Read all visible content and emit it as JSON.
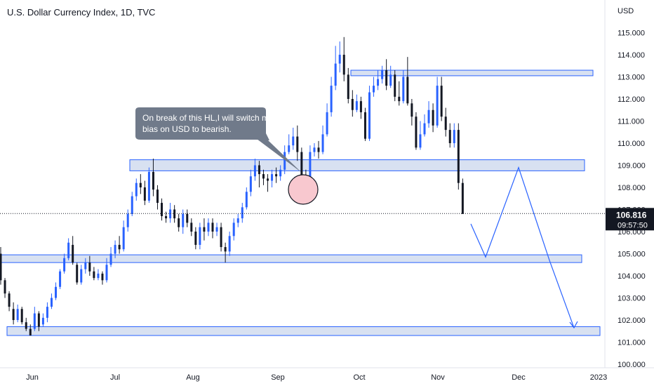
{
  "header": {
    "title": "U.S. Dollar Currency Index, 1D, TVC"
  },
  "axis": {
    "currency": "USD",
    "y_ticks": [
      "115.000",
      "114.000",
      "113.000",
      "112.000",
      "111.000",
      "110.000",
      "109.000",
      "108.000",
      "107.000",
      "106.000",
      "105.000",
      "104.000",
      "103.000",
      "102.000",
      "101.000",
      "100.000"
    ],
    "x_ticks": [
      "Jun",
      "Jul",
      "Aug",
      "Sep",
      "Oct",
      "Nov",
      "Dec",
      "2023"
    ]
  },
  "price_tag": {
    "price": "106.816",
    "countdown": "09:57:50"
  },
  "annotation": {
    "line1": "On break of this HL,I will switch my",
    "line2": "bias on USD to bearish."
  },
  "colors": {
    "bull": "#2962ff",
    "bear": "#131722",
    "zone_fill": "#d1dcee",
    "zone_border": "#2962ff",
    "arrow": "#2962ff",
    "circle_fill": "#f8c8cf",
    "callout": "#707a8a"
  },
  "chart_data": {
    "type": "candlestick",
    "title": "U.S. Dollar Currency Index, 1D, TVC",
    "ylabel": "USD",
    "ylim": [
      100,
      116
    ],
    "last_price": 106.816,
    "zones": [
      {
        "low": 101.3,
        "high": 101.7
      },
      {
        "low": 104.6,
        "high": 104.95
      },
      {
        "low": 108.75,
        "high": 109.25
      },
      {
        "low": 113.05,
        "high": 113.3
      }
    ],
    "projection_path": [
      106.35,
      104.85,
      108.9,
      104.7,
      101.65
    ],
    "candles": [
      [
        105.0,
        103.8,
        105.3,
        103.6
      ],
      [
        103.8,
        103.2,
        103.9,
        103.0
      ],
      [
        103.2,
        102.6,
        103.3,
        102.4
      ],
      [
        102.5,
        102.0,
        102.8,
        101.8
      ],
      [
        102.0,
        102.5,
        102.7,
        101.9
      ],
      [
        102.5,
        101.9,
        102.6,
        101.8
      ],
      [
        101.9,
        101.6,
        102.1,
        101.5
      ],
      [
        101.6,
        101.3,
        101.8,
        101.3
      ],
      [
        101.6,
        102.3,
        102.6,
        101.5
      ],
      [
        102.3,
        101.7,
        102.4,
        101.5
      ],
      [
        101.8,
        102.1,
        102.3,
        101.7
      ],
      [
        102.1,
        102.6,
        102.8,
        101.9
      ],
      [
        102.6,
        103.0,
        103.2,
        102.5
      ],
      [
        103.0,
        103.5,
        103.7,
        102.9
      ],
      [
        103.5,
        104.2,
        104.3,
        103.4
      ],
      [
        104.2,
        104.8,
        105.0,
        104.1
      ],
      [
        104.8,
        105.5,
        105.7,
        104.7
      ],
      [
        105.4,
        104.6,
        105.8,
        104.5
      ],
      [
        104.5,
        103.7,
        104.6,
        103.6
      ],
      [
        103.7,
        104.3,
        104.5,
        103.6
      ],
      [
        104.3,
        104.6,
        104.8,
        104.1
      ],
      [
        104.6,
        104.2,
        104.9,
        104.0
      ],
      [
        104.2,
        103.9,
        104.4,
        103.8
      ],
      [
        103.9,
        104.1,
        104.3,
        103.8
      ],
      [
        104.1,
        103.8,
        104.2,
        103.6
      ],
      [
        103.8,
        104.5,
        104.8,
        103.7
      ],
      [
        104.5,
        105.0,
        105.3,
        104.4
      ],
      [
        105.0,
        105.4,
        105.6,
        104.8
      ],
      [
        105.4,
        105.2,
        105.8,
        105.0
      ],
      [
        105.2,
        106.2,
        106.5,
        105.1
      ],
      [
        106.2,
        106.8,
        107.0,
        106.0
      ],
      [
        106.8,
        107.6,
        107.8,
        106.7
      ],
      [
        107.6,
        108.2,
        108.4,
        107.4
      ],
      [
        108.2,
        108.0,
        108.6,
        107.7
      ],
      [
        108.0,
        107.4,
        108.3,
        107.2
      ],
      [
        107.4,
        108.7,
        108.9,
        107.3
      ],
      [
        108.7,
        107.9,
        109.3,
        107.6
      ],
      [
        107.9,
        107.3,
        108.1,
        107.0
      ],
      [
        107.3,
        106.7,
        107.5,
        106.5
      ],
      [
        106.7,
        106.6,
        106.9,
        106.4
      ],
      [
        106.6,
        107.0,
        107.3,
        106.4
      ],
      [
        107.0,
        106.6,
        107.2,
        106.4
      ],
      [
        106.6,
        106.2,
        106.8,
        106.0
      ],
      [
        106.2,
        106.8,
        107.0,
        105.9
      ],
      [
        106.8,
        106.4,
        107.0,
        106.2
      ],
      [
        106.4,
        106.0,
        106.6,
        105.8
      ],
      [
        106.0,
        105.4,
        106.2,
        105.2
      ],
      [
        105.4,
        106.2,
        106.4,
        105.2
      ],
      [
        106.2,
        106.0,
        106.6,
        105.6
      ],
      [
        106.0,
        106.4,
        106.6,
        105.8
      ],
      [
        106.4,
        106.0,
        106.6,
        105.7
      ],
      [
        106.0,
        106.2,
        106.4,
        105.8
      ],
      [
        106.2,
        105.3,
        106.4,
        105.1
      ],
      [
        105.3,
        105.1,
        105.5,
        104.6
      ],
      [
        105.1,
        105.8,
        106.0,
        104.9
      ],
      [
        105.8,
        106.4,
        106.6,
        105.6
      ],
      [
        106.4,
        106.6,
        106.8,
        106.2
      ],
      [
        106.6,
        107.1,
        107.3,
        106.4
      ],
      [
        107.1,
        107.8,
        108.0,
        107.0
      ],
      [
        107.8,
        108.5,
        108.8,
        107.6
      ],
      [
        108.5,
        109.0,
        109.3,
        108.3
      ],
      [
        109.0,
        108.6,
        109.2,
        108.0
      ],
      [
        108.6,
        108.4,
        108.8,
        108.1
      ],
      [
        108.4,
        108.3,
        108.6,
        107.8
      ],
      [
        108.3,
        108.6,
        108.8,
        108.0
      ],
      [
        108.6,
        108.5,
        108.9,
        108.2
      ],
      [
        108.5,
        108.8,
        109.0,
        108.3
      ],
      [
        108.8,
        109.6,
        109.9,
        108.6
      ],
      [
        109.6,
        109.9,
        110.4,
        109.5
      ],
      [
        109.9,
        110.3,
        110.7,
        109.7
      ],
      [
        110.3,
        109.6,
        110.8,
        109.2
      ],
      [
        109.6,
        108.5,
        109.8,
        108.3
      ],
      [
        108.5,
        107.9,
        108.8,
        107.7
      ],
      [
        107.9,
        109.6,
        109.9,
        107.8
      ],
      [
        109.6,
        109.8,
        110.0,
        109.4
      ],
      [
        109.8,
        109.6,
        110.1,
        109.3
      ],
      [
        109.6,
        110.4,
        110.8,
        109.5
      ],
      [
        110.4,
        111.4,
        111.8,
        110.3
      ],
      [
        111.4,
        112.6,
        113.0,
        111.2
      ],
      [
        112.6,
        113.6,
        114.4,
        112.4
      ],
      [
        113.6,
        114.0,
        114.6,
        113.2
      ],
      [
        114.0,
        113.1,
        114.8,
        112.8
      ],
      [
        113.1,
        112.0,
        113.4,
        111.8
      ],
      [
        112.0,
        111.5,
        112.4,
        111.2
      ],
      [
        111.5,
        111.9,
        112.2,
        111.4
      ],
      [
        111.9,
        111.4,
        112.1,
        111.1
      ],
      [
        111.4,
        110.2,
        111.6,
        110.1
      ],
      [
        110.2,
        112.3,
        112.6,
        110.1
      ],
      [
        112.3,
        112.6,
        113.0,
        112.1
      ],
      [
        112.6,
        112.9,
        113.3,
        112.4
      ],
      [
        112.9,
        113.3,
        113.5,
        112.7
      ],
      [
        113.3,
        112.6,
        113.8,
        112.4
      ],
      [
        112.6,
        113.1,
        113.5,
        112.5
      ],
      [
        113.1,
        112.1,
        113.3,
        111.9
      ],
      [
        112.1,
        111.9,
        112.8,
        111.7
      ],
      [
        111.9,
        113.0,
        113.3,
        111.8
      ],
      [
        113.0,
        111.8,
        113.9,
        111.7
      ],
      [
        111.8,
        111.2,
        112.0,
        110.8
      ],
      [
        111.2,
        109.8,
        111.4,
        109.7
      ],
      [
        109.8,
        110.4,
        111.0,
        109.7
      ],
      [
        110.4,
        110.9,
        111.3,
        110.3
      ],
      [
        110.9,
        111.5,
        111.9,
        110.7
      ],
      [
        111.5,
        110.8,
        111.8,
        110.5
      ],
      [
        110.8,
        112.6,
        113.0,
        110.7
      ],
      [
        112.6,
        111.2,
        113.0,
        111.0
      ],
      [
        111.2,
        110.6,
        111.6,
        110.3
      ],
      [
        110.6,
        110.0,
        110.9,
        109.8
      ],
      [
        110.0,
        110.6,
        110.9,
        109.8
      ],
      [
        110.6,
        108.2,
        110.9,
        107.9
      ],
      [
        108.2,
        106.8,
        108.4,
        106.8
      ]
    ]
  }
}
